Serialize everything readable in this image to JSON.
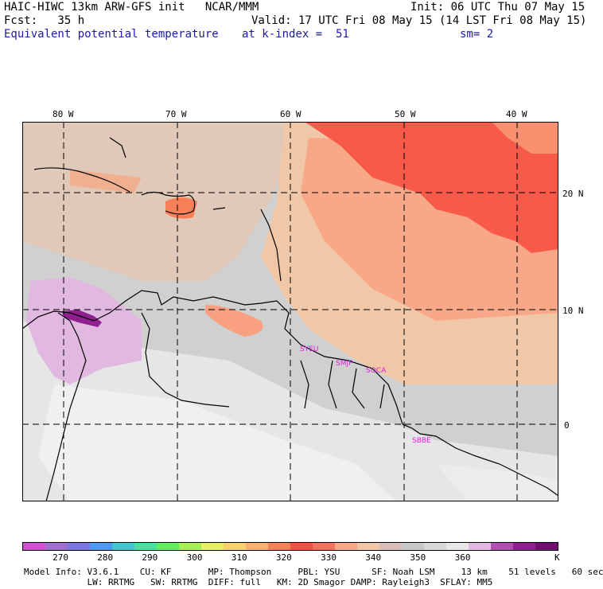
{
  "header": {
    "line1_left": "HAIC-HIWC 13km ARW-GFS init   NCAR/MMM",
    "line1_right": "Init: 06 UTC Thu 07 May 15",
    "line2_left": "Fcst:   35 h",
    "line2_right": "Valid: 17 UTC Fri 08 May 15 (14 LST Fri 08 May 15)",
    "line3_field": "Equivalent potential temperature",
    "line3_level": "at k-index =  51",
    "line3_sm": "sm= 2"
  },
  "map": {
    "lon_labels": [
      "80 W",
      "70 W",
      "60 W",
      "50 W",
      "40 W"
    ],
    "lat_labels": [
      "20 N",
      "10 N",
      "0"
    ],
    "station_labels": [
      "SYEU",
      "SMJP",
      "SOCA",
      "SBBE"
    ],
    "station_color": "#e020e0"
  },
  "legend": {
    "colors": [
      "#d050d0",
      "#a070d0",
      "#7a78e0",
      "#4f9af0",
      "#40c8d0",
      "#40e6a0",
      "#60ee60",
      "#a8f050",
      "#e8f060",
      "#f8d070",
      "#f8b070",
      "#f88058",
      "#f85048",
      "#f87060",
      "#f8a888",
      "#f0c8a8",
      "#d8c0b8",
      "#c8c8c8",
      "#d8d8d8",
      "#e8e8e8",
      "#e0b8e0",
      "#b050b0",
      "#902090",
      "#701070"
    ],
    "labels": [
      "270",
      "280",
      "290",
      "300",
      "310",
      "320",
      "330",
      "340",
      "350",
      "360"
    ],
    "unit": "K"
  },
  "footer": {
    "line1": "Model Info: V3.6.1    CU: KF       MP: Thompson     PBL: YSU      SF: Noah LSM     13 km    51 levels   60 sec",
    "line2": "            LW: RRTMG   SW: RRTMG  DIFF: full   KM: 2D Smagor DAMP: Rayleigh3  SFLAY: MM5"
  }
}
